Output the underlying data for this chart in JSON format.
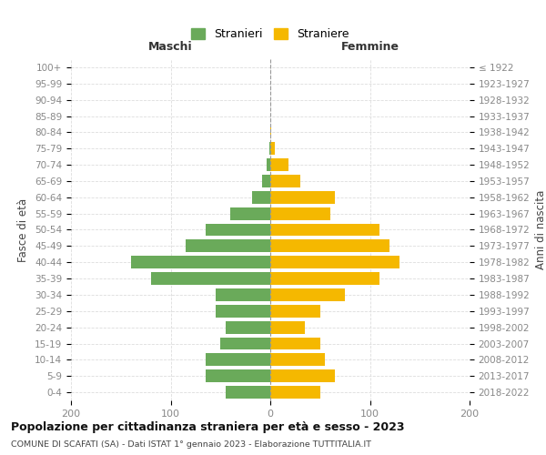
{
  "age_groups": [
    "0-4",
    "5-9",
    "10-14",
    "15-19",
    "20-24",
    "25-29",
    "30-34",
    "35-39",
    "40-44",
    "45-49",
    "50-54",
    "55-59",
    "60-64",
    "65-69",
    "70-74",
    "75-79",
    "80-84",
    "85-89",
    "90-94",
    "95-99",
    "100+"
  ],
  "birth_years": [
    "2018-2022",
    "2013-2017",
    "2008-2012",
    "2003-2007",
    "1998-2002",
    "1993-1997",
    "1988-1992",
    "1983-1987",
    "1978-1982",
    "1973-1977",
    "1968-1972",
    "1963-1967",
    "1958-1962",
    "1953-1957",
    "1948-1952",
    "1943-1947",
    "1938-1942",
    "1933-1937",
    "1928-1932",
    "1923-1927",
    "≤ 1922"
  ],
  "maschi": [
    45,
    65,
    65,
    50,
    45,
    55,
    55,
    120,
    140,
    85,
    65,
    40,
    18,
    8,
    4,
    1,
    0,
    0,
    0,
    0,
    0
  ],
  "femmine": [
    50,
    65,
    55,
    50,
    35,
    50,
    75,
    110,
    130,
    120,
    110,
    60,
    65,
    30,
    18,
    5,
    1,
    0,
    0,
    0,
    0
  ],
  "color_maschi": "#6aaa5a",
  "color_femmine": "#f5b800",
  "title": "Popolazione per cittadinanza straniera per età e sesso - 2023",
  "subtitle": "COMUNE DI SCAFATI (SA) - Dati ISTAT 1° gennaio 2023 - Elaborazione TUTTITALIA.IT",
  "xlabel_left": "Maschi",
  "xlabel_right": "Femmine",
  "ylabel_left": "Fasce di età",
  "ylabel_right": "Anni di nascita",
  "legend_maschi": "Stranieri",
  "legend_femmine": "Straniere",
  "xlim": 200,
  "background_color": "#ffffff",
  "grid_color": "#dddddd"
}
